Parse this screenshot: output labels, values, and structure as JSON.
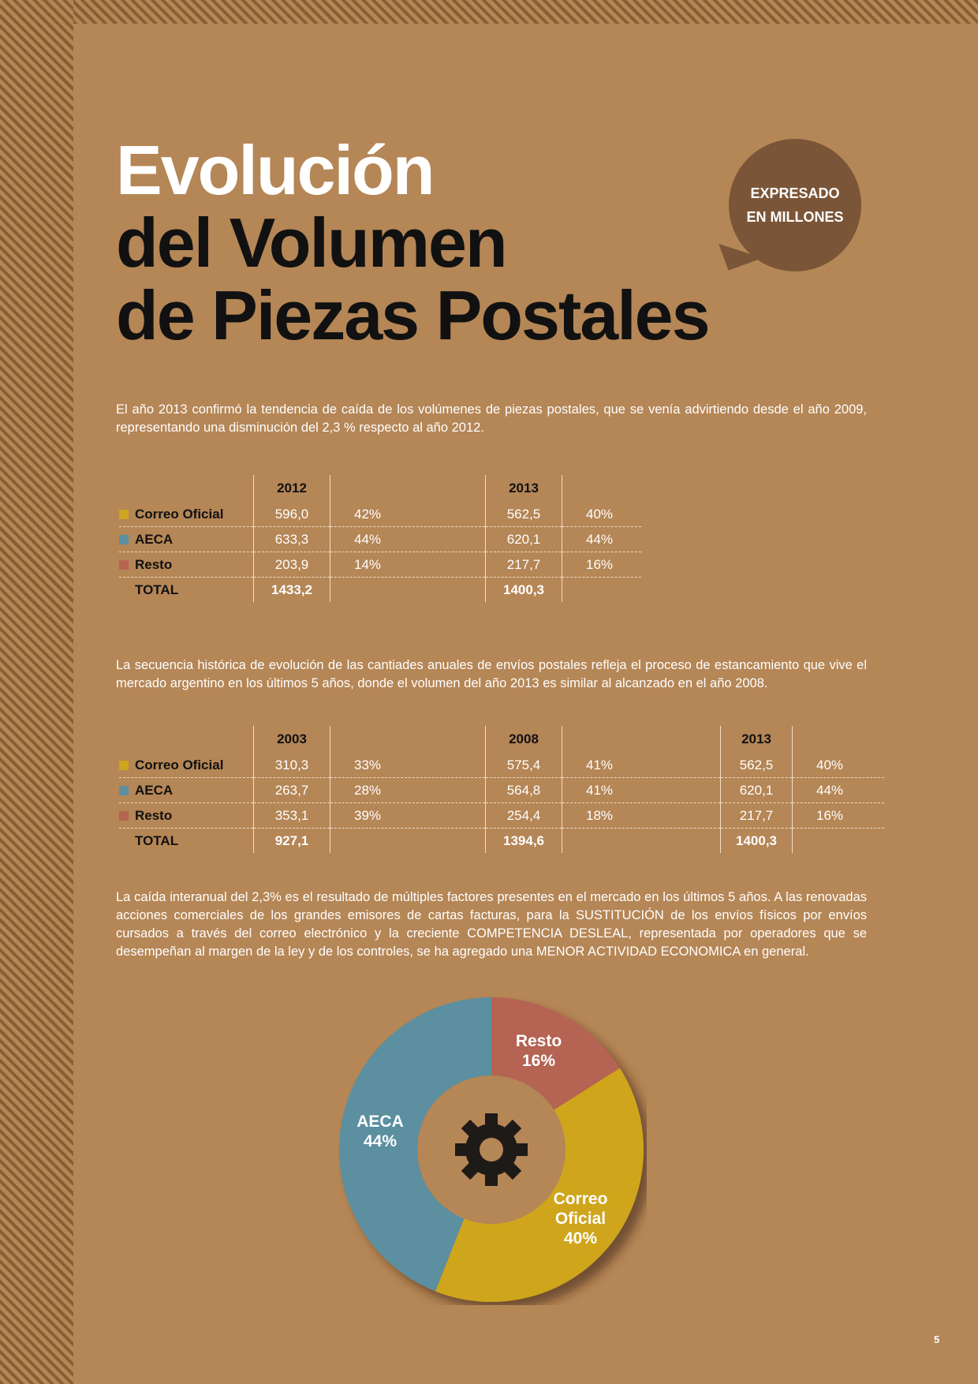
{
  "title": {
    "line1": "Evolución",
    "line2": "del Volumen",
    "line3": "de Piezas Postales"
  },
  "badge": {
    "line1": "EXPRESADO",
    "line2": "EN MILLONES"
  },
  "intro": "El año 2013 confirmó la tendencia de caída de los volúmenes de piezas postales, que se venía advirtiendo desde el año 2009, representando una disminución del 2,3 % respecto al año 2012.",
  "colors": {
    "correo": "#cfa51e",
    "aeca": "#5b8fa0",
    "resto": "#b56453",
    "background": "#b58656"
  },
  "table1": {
    "years": [
      "2012",
      "2013"
    ],
    "rows": [
      {
        "label": "Correo Oficial",
        "values": [
          "596,0",
          "42%",
          "562,5",
          "40%"
        ]
      },
      {
        "label": "AECA",
        "values": [
          "633,3",
          "44%",
          "620,1",
          "44%"
        ]
      },
      {
        "label": "Resto",
        "values": [
          "203,9",
          "14%",
          "217,7",
          "16%"
        ]
      }
    ],
    "total_label": "TOTAL",
    "totals": [
      "1433,2",
      "1400,3"
    ]
  },
  "para2": "La secuencia histórica de evolución de las cantiades anuales de envíos postales refleja el proceso de estancamiento que vive el mercado argentino en los últimos 5 años, donde el volumen del año 2013 es similar al alcanzado en el año 2008.",
  "table2": {
    "years": [
      "2003",
      "2008",
      "2013"
    ],
    "rows": [
      {
        "label": "Correo Oficial",
        "values": [
          "310,3",
          "33%",
          "575,4",
          "41%",
          "562,5",
          "40%"
        ]
      },
      {
        "label": "AECA",
        "values": [
          "263,7",
          "28%",
          "564,8",
          "41%",
          "620,1",
          "44%"
        ]
      },
      {
        "label": "Resto",
        "values": [
          "353,1",
          "39%",
          "254,4",
          "18%",
          "217,7",
          "16%"
        ]
      }
    ],
    "total_label": "TOTAL",
    "totals": [
      "927,1",
      "1394,6",
      "1400,3"
    ]
  },
  "para3": "La caída interanual del 2,3% es el resultado de múltiples factores presentes en el mercado en los últimos 5 años. A las renovadas acciones comerciales de los grandes emisores de cartas facturas, para la SUSTITUCIÓN de los envíos físicos por envíos cursados a través del correo electrónico y la creciente COMPETENCIA DESLEAL, representada por operadores que se desempeñan al margen de la ley y de los controles, se ha agregado una MENOR ACTIVIDAD ECONOMICA en general.",
  "chart_data": {
    "type": "pie",
    "donut": true,
    "center_icon": "gear-icon",
    "slices": [
      {
        "label": "Resto",
        "value": 16,
        "value_text": "16%",
        "color": "#b56453"
      },
      {
        "label": "Correo Oficial",
        "label_lines": [
          "Correo",
          "Oficial"
        ],
        "value": 40,
        "value_text": "40%",
        "color": "#cfa51e"
      },
      {
        "label": "AECA",
        "value": 44,
        "value_text": "44%",
        "color": "#5b8fa0"
      }
    ]
  },
  "page_number": "5"
}
